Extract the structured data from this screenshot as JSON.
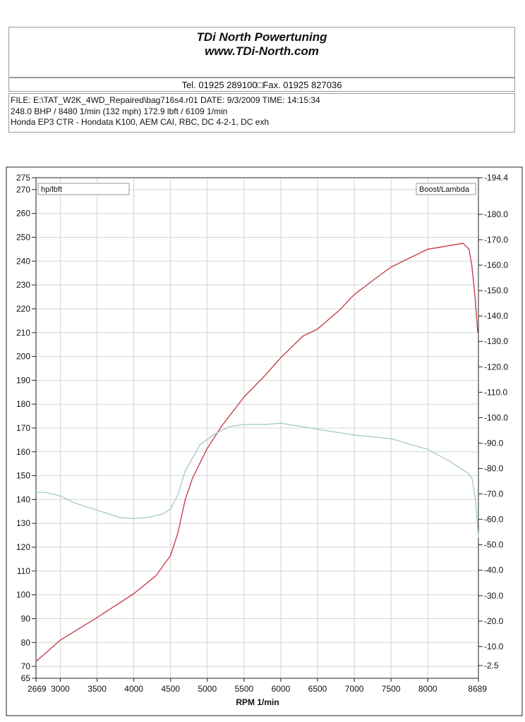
{
  "header": {
    "company": "TDi North Powertuning",
    "url": "www.TDi-North.com",
    "contact": "Tel. 01925 289100□Fax. 01925 827036"
  },
  "info": {
    "line1": "FILE: E:\\TAT_W2K_4WD_Repaired\\bag716s4.r01  DATE: 9/3/2009  TIME: 14:15:34",
    "line2": "248.0 BHP / 8480 1/min (132 mph)     172.9 lbft / 6109 1/min",
    "line3": "Honda EP3 CTR - Hondata K100, AEM CAI, RBC, DC 4-2-1, DC exh"
  },
  "colors": {
    "power": "#c8404c",
    "torque": "#a9cdc8",
    "grid": "#d4d4d4",
    "frame": "#222222"
  },
  "chart_data": {
    "type": "line",
    "xlabel": "RPM  1/min",
    "left_axis_label": "hp/lbft",
    "right_axis_label": "Boost/Lambda",
    "xlim": [
      2669,
      8689
    ],
    "ylim_left": [
      65,
      275
    ],
    "ylim_right": [
      -2.5,
      194.4
    ],
    "x_ticks": [
      "2669",
      "3000",
      "3500",
      "4000",
      "4500",
      "5000",
      "5500",
      "6000",
      "6500",
      "7000",
      "7500",
      "8000",
      "8689"
    ],
    "y_ticks_left": [
      "65",
      "70",
      "80",
      "90",
      "100",
      "110",
      "120",
      "130",
      "140",
      "150",
      "160",
      "170",
      "180",
      "190",
      "200",
      "210",
      "220",
      "230",
      "240",
      "250",
      "260",
      "270",
      "275"
    ],
    "y_ticks_right": [
      "-2.5",
      "-10.0",
      "-20.0",
      "-30.0",
      "-40.0",
      "-50.0",
      "-60.0",
      "-70.0",
      "-80.0",
      "-90.0",
      "-100.0",
      "-110.0",
      "-120.0",
      "-130.0",
      "-140.0",
      "-150.0",
      "-160.0",
      "-170.0",
      "-180.0",
      "-194.4"
    ],
    "grid": true,
    "series": [
      {
        "name": "",
        "color": "#c8404c",
        "x": [
          2669,
          3000,
          3500,
          4000,
          4300,
          4500,
          4600,
          4700,
          4800,
          5000,
          5200,
          5500,
          5800,
          6000,
          6300,
          6500,
          6800,
          7000,
          7300,
          7500,
          8000,
          8200,
          8480,
          8560,
          8600,
          8640,
          8680
        ],
        "y": [
          72,
          81,
          90.5,
          100.5,
          108,
          116.5,
          126,
          140,
          149,
          161.5,
          171,
          183,
          192.5,
          199.5,
          208.5,
          211.5,
          219.5,
          226,
          233,
          237.5,
          245,
          246,
          247.5,
          245,
          238,
          226,
          210
        ]
      },
      {
        "name": "",
        "color": "#a9cdc8",
        "x": [
          2669,
          2800,
          3000,
          3200,
          3500,
          3800,
          4000,
          4200,
          4400,
          4500,
          4600,
          4700,
          4900,
          5100,
          5300,
          5500,
          5800,
          6000,
          6200,
          6500,
          7000,
          7500,
          8000,
          8300,
          8550,
          8600,
          8650,
          8689
        ],
        "y": [
          143,
          143,
          141.5,
          138.5,
          135.5,
          132.5,
          132,
          132.5,
          134,
          136,
          142,
          152,
          163,
          167.5,
          170.5,
          171.5,
          171.5,
          172,
          171,
          169.5,
          167,
          165.5,
          161,
          156,
          151,
          149,
          140,
          124
        ]
      }
    ]
  }
}
